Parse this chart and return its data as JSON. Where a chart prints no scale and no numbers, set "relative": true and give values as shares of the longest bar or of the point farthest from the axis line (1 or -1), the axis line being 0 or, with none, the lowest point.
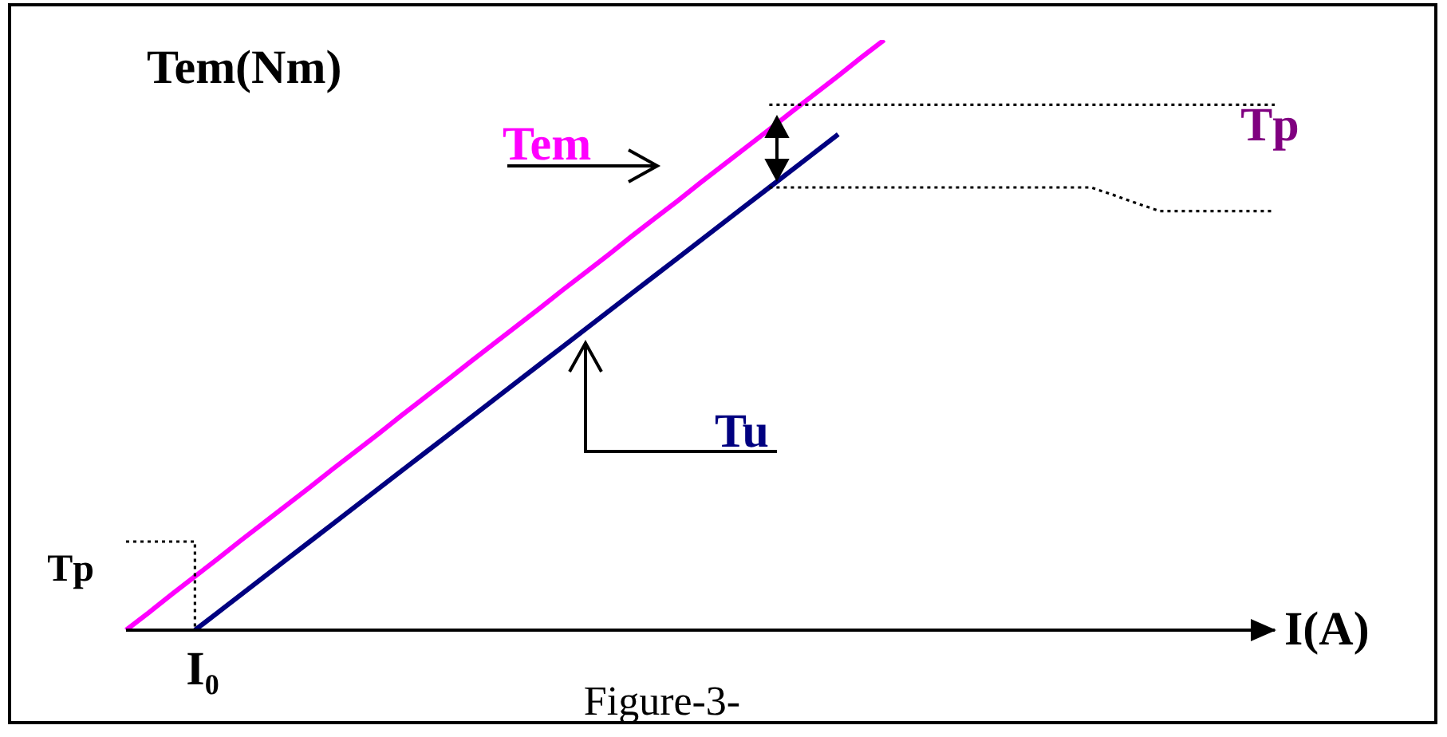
{
  "chart_data": {
    "type": "line",
    "relative": true,
    "xlabel": "I(A)",
    "ylabel": "Tem(Nm)",
    "marker": "none",
    "categories": [
      null,
      null,
      null,
      null,
      null,
      null,
      null,
      null,
      null,
      null,
      null,
      null,
      null,
      null,
      null,
      null,
      null,
      null,
      null,
      null,
      null,
      null,
      null,
      null,
      null,
      null,
      null,
      null,
      null,
      null,
      null,
      null,
      null,
      null,
      null,
      null,
      null,
      null,
      null,
      null,
      null,
      null,
      null,
      null,
      null,
      null,
      null,
      null,
      null,
      null,
      null
    ],
    "series": [
      {
        "name": "Tem",
        "color": "#ff00ff",
        "values": [
          0,
          0.03,
          0.061,
          0.091,
          0.121,
          0.152,
          0.182,
          0.212,
          0.242,
          0.273,
          0.303,
          0.333,
          0.364,
          0.394,
          0.424,
          0.455,
          0.485,
          0.515,
          0.545,
          0.576,
          0.606,
          0.636,
          0.667,
          0.697,
          0.727,
          0.758,
          0.788,
          0.818,
          0.848,
          0.879,
          0.909,
          0.939,
          0.97,
          1,
          null,
          null,
          null,
          null,
          null,
          null,
          null,
          null,
          null,
          null,
          null,
          null,
          null,
          null,
          null,
          null,
          null
        ]
      },
      {
        "name": "Tu",
        "color": "#000080",
        "values": [
          null,
          null,
          null,
          0,
          0.03,
          0.06,
          0.09,
          0.12,
          0.15,
          0.18,
          0.21,
          0.24,
          0.27,
          0.3,
          0.33,
          0.36,
          0.39,
          0.42,
          0.45,
          0.48,
          0.51,
          0.54,
          0.57,
          0.6,
          0.63,
          0.66,
          0.69,
          0.72,
          0.75,
          0.78,
          0.81,
          0.84,
          null,
          null,
          null,
          null,
          null,
          null,
          null,
          null,
          null,
          null,
          null,
          null,
          null,
          null,
          null,
          null,
          null,
          null,
          null
        ]
      },
      {
        "color": "#000000",
        "line_style": "dotted",
        "values": [
          null,
          null,
          null,
          null,
          null,
          null,
          null,
          null,
          null,
          null,
          null,
          null,
          null,
          null,
          null,
          null,
          null,
          null,
          null,
          null,
          null,
          null,
          null,
          null,
          null,
          null,
          null,
          null,
          0.89,
          0.89,
          0.89,
          0.89,
          0.89,
          0.89,
          0.89,
          0.89,
          0.89,
          0.89,
          0.89,
          0.89,
          0.89,
          0.89,
          0.89,
          0.89,
          0.89,
          0.89,
          0.89,
          0.89,
          0.89,
          0.89,
          0.89
        ]
      },
      {
        "color": "#000000",
        "line_style": "dotted",
        "values": [
          null,
          null,
          null,
          null,
          null,
          null,
          null,
          null,
          null,
          null,
          null,
          null,
          null,
          null,
          null,
          null,
          null,
          null,
          null,
          null,
          null,
          null,
          null,
          null,
          null,
          null,
          null,
          null,
          0.75,
          0.75,
          0.75,
          0.75,
          0.75,
          0.75,
          0.75,
          0.75,
          0.75,
          0.75,
          0.75,
          0.75,
          0.75,
          0.75,
          0.75,
          0.737,
          0.723,
          0.71,
          0.71,
          0.71,
          0.71,
          0.71,
          0.71
        ]
      },
      {
        "type": "step",
        "color": "#000000",
        "line_style": "dotted",
        "values": [
          0.15,
          0.15,
          0.15,
          0,
          null,
          null,
          null,
          null,
          null,
          null,
          null,
          null,
          null,
          null,
          null,
          null,
          null,
          null,
          null,
          null,
          null,
          null,
          null,
          null,
          null,
          null,
          null,
          null,
          null,
          null,
          null,
          null,
          null,
          null,
          null,
          null,
          null,
          null,
          null,
          null,
          null,
          null,
          null,
          null,
          null,
          null,
          null,
          null,
          null,
          null,
          null
        ]
      }
    ],
    "annotations": [
      "Tp",
      "Tp",
      "I₀",
      "Figure-3-"
    ]
  }
}
